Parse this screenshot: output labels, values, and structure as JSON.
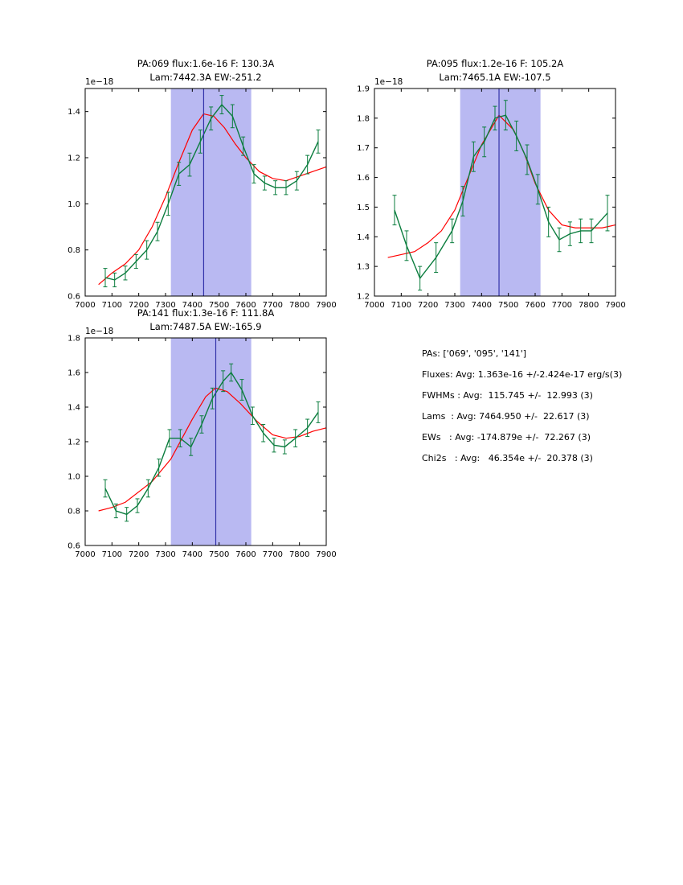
{
  "colors": {
    "data": "#0b7d3e",
    "fit": "#ff0000",
    "band": "#b9b9f2",
    "vline": "#3333aa",
    "frame": "#000000"
  },
  "summary": {
    "lines": [
      "PAs: ['069', '095', '141']",
      "Fluxes: Avg: 1.363e-16 +/-2.424e-17 erg/s(3)",
      "FWHMs : Avg:  115.745 +/-  12.993 (3)",
      "Lams  : Avg: 7464.950 +/-  22.617 (3)",
      "EWs   : Avg: -174.879e +/-  72.267 (3)",
      "Chi2s   : Avg:   46.354e +/-  20.378 (3)"
    ]
  },
  "chart_data": [
    {
      "type": "line",
      "title_line1": "PA:069 flux:1.6e-16 F: 130.3A",
      "title_line2": "Lam:7442.3A EW:-251.2",
      "offset_label": "1e−18",
      "xlim": [
        7000,
        7900
      ],
      "ylim": [
        0.6,
        1.5
      ],
      "xticks": [
        7000,
        7100,
        7200,
        7300,
        7400,
        7500,
        7600,
        7700,
        7800,
        7900
      ],
      "yticks": [
        0.6,
        0.8,
        1.0,
        1.2,
        1.4
      ],
      "ytick_labels": [
        "0.6",
        "0.8",
        "1.0",
        "1.2",
        "1.4"
      ],
      "band": [
        7320,
        7620
      ],
      "vline": 7442.3,
      "data": {
        "x": [
          7075,
          7110,
          7150,
          7190,
          7230,
          7270,
          7310,
          7350,
          7390,
          7430,
          7470,
          7510,
          7550,
          7590,
          7630,
          7670,
          7710,
          7750,
          7790,
          7830,
          7870
        ],
        "y": [
          0.68,
          0.67,
          0.7,
          0.75,
          0.8,
          0.88,
          1.0,
          1.13,
          1.17,
          1.27,
          1.37,
          1.43,
          1.38,
          1.25,
          1.13,
          1.09,
          1.07,
          1.07,
          1.1,
          1.17,
          1.27
        ],
        "yerr": [
          0.04,
          0.03,
          0.03,
          0.03,
          0.04,
          0.04,
          0.05,
          0.05,
          0.05,
          0.05,
          0.05,
          0.04,
          0.05,
          0.04,
          0.04,
          0.03,
          0.03,
          0.03,
          0.04,
          0.04,
          0.05
        ]
      },
      "fit": {
        "x": [
          7050,
          7100,
          7150,
          7200,
          7250,
          7300,
          7350,
          7400,
          7442,
          7480,
          7520,
          7560,
          7600,
          7650,
          7700,
          7750,
          7800,
          7850,
          7900
        ],
        "y": [
          0.65,
          0.7,
          0.74,
          0.8,
          0.9,
          1.03,
          1.18,
          1.32,
          1.39,
          1.38,
          1.33,
          1.26,
          1.2,
          1.14,
          1.11,
          1.1,
          1.12,
          1.14,
          1.16
        ]
      }
    },
    {
      "type": "line",
      "title_line1": "PA:095 flux:1.2e-16 F: 105.2A",
      "title_line2": "Lam:7465.1A EW:-107.5",
      "offset_label": "1e−18",
      "xlim": [
        7000,
        7900
      ],
      "ylim": [
        1.2,
        1.9
      ],
      "xticks": [
        7000,
        7100,
        7200,
        7300,
        7400,
        7500,
        7600,
        7700,
        7800,
        7900
      ],
      "yticks": [
        1.2,
        1.3,
        1.4,
        1.5,
        1.6,
        1.7,
        1.8,
        1.9
      ],
      "ytick_labels": [
        "1.2",
        "1.3",
        "1.4",
        "1.5",
        "1.6",
        "1.7",
        "1.8",
        "1.9"
      ],
      "band": [
        7320,
        7620
      ],
      "vline": 7465.1,
      "data": {
        "x": [
          7075,
          7120,
          7170,
          7230,
          7290,
          7330,
          7370,
          7410,
          7450,
          7490,
          7530,
          7570,
          7610,
          7650,
          7690,
          7730,
          7770,
          7810,
          7870
        ],
        "y": [
          1.49,
          1.37,
          1.26,
          1.33,
          1.42,
          1.52,
          1.67,
          1.72,
          1.8,
          1.81,
          1.74,
          1.66,
          1.56,
          1.45,
          1.39,
          1.41,
          1.42,
          1.42,
          1.48
        ],
        "yerr": [
          0.05,
          0.05,
          0.04,
          0.05,
          0.04,
          0.05,
          0.05,
          0.05,
          0.04,
          0.05,
          0.05,
          0.05,
          0.05,
          0.05,
          0.04,
          0.04,
          0.04,
          0.04,
          0.06
        ]
      },
      "fit": {
        "x": [
          7050,
          7100,
          7150,
          7200,
          7250,
          7300,
          7350,
          7400,
          7465,
          7520,
          7560,
          7600,
          7650,
          7700,
          7750,
          7800,
          7850,
          7900
        ],
        "y": [
          1.33,
          1.34,
          1.35,
          1.38,
          1.42,
          1.49,
          1.6,
          1.71,
          1.81,
          1.76,
          1.68,
          1.58,
          1.49,
          1.44,
          1.43,
          1.43,
          1.43,
          1.44
        ]
      }
    },
    {
      "type": "line",
      "title_line1": "PA:141 flux:1.3e-16 F: 111.8A",
      "title_line2": "Lam:7487.5A EW:-165.9",
      "offset_label": "1e−18",
      "xlim": [
        7000,
        7900
      ],
      "ylim": [
        0.6,
        1.8
      ],
      "xticks": [
        7000,
        7100,
        7200,
        7300,
        7400,
        7500,
        7600,
        7700,
        7800,
        7900
      ],
      "yticks": [
        0.6,
        0.8,
        1.0,
        1.2,
        1.4,
        1.6,
        1.8
      ],
      "ytick_labels": [
        "0.6",
        "0.8",
        "1.0",
        "1.2",
        "1.4",
        "1.6",
        "1.8"
      ],
      "band": [
        7320,
        7620
      ],
      "vline": 7487.5,
      "data": {
        "x": [
          7075,
          7115,
          7155,
          7195,
          7235,
          7275,
          7315,
          7355,
          7395,
          7435,
          7475,
          7515,
          7545,
          7585,
          7625,
          7665,
          7705,
          7745,
          7785,
          7830,
          7870
        ],
        "y": [
          0.93,
          0.8,
          0.78,
          0.83,
          0.93,
          1.05,
          1.22,
          1.22,
          1.17,
          1.3,
          1.45,
          1.55,
          1.6,
          1.5,
          1.35,
          1.25,
          1.18,
          1.17,
          1.22,
          1.28,
          1.37
        ],
        "yerr": [
          0.05,
          0.04,
          0.04,
          0.04,
          0.05,
          0.05,
          0.05,
          0.05,
          0.05,
          0.05,
          0.06,
          0.06,
          0.05,
          0.06,
          0.05,
          0.05,
          0.04,
          0.04,
          0.05,
          0.05,
          0.06
        ]
      },
      "fit": {
        "x": [
          7050,
          7100,
          7150,
          7250,
          7320,
          7400,
          7450,
          7487,
          7530,
          7580,
          7640,
          7700,
          7750,
          7800,
          7850,
          7900
        ],
        "y": [
          0.8,
          0.82,
          0.85,
          0.97,
          1.1,
          1.33,
          1.46,
          1.51,
          1.49,
          1.42,
          1.32,
          1.24,
          1.22,
          1.23,
          1.26,
          1.28
        ]
      }
    }
  ]
}
